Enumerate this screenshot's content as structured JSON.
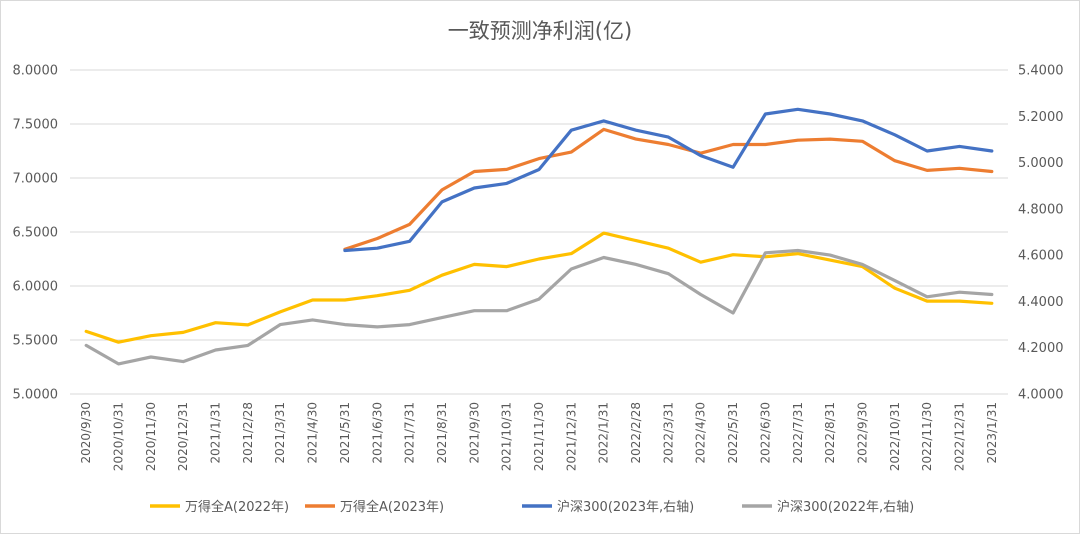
{
  "chart_data": {
    "type": "line",
    "title": "一致预测净利润(亿)",
    "categories": [
      "2020/9/30",
      "2020/10/31",
      "2020/11/30",
      "2020/12/31",
      "2021/1/31",
      "2021/2/28",
      "2021/3/31",
      "2021/4/30",
      "2021/5/31",
      "2021/6/30",
      "2021/7/31",
      "2021/8/31",
      "2021/9/30",
      "2021/10/31",
      "2021/11/30",
      "2021/12/31",
      "2022/1/31",
      "2022/2/28",
      "2022/3/31",
      "2022/4/30",
      "2022/5/31",
      "2022/6/30",
      "2022/7/31",
      "2022/8/31",
      "2022/9/30",
      "2022/10/31",
      "2022/11/30",
      "2022/12/31",
      "2023/1/31"
    ],
    "y_left": {
      "min": 5.0,
      "max": 8.0,
      "step": 0.5,
      "tick_labels": [
        "5.0000",
        "5.5000",
        "6.0000",
        "6.5000",
        "7.0000",
        "7.5000",
        "8.0000"
      ]
    },
    "y_right": {
      "min": 4.0,
      "max": 5.4,
      "step": 0.2,
      "tick_labels": [
        "4.0000",
        "4.2000",
        "4.4000",
        "4.6000",
        "4.8000",
        "5.0000",
        "5.2000",
        "5.4000"
      ]
    },
    "grid": true,
    "legend_position": "bottom",
    "series": [
      {
        "name": "万得全A(2022年)",
        "axis": "left",
        "color": "#FFC000",
        "values": [
          5.58,
          5.48,
          5.54,
          5.57,
          5.66,
          5.64,
          5.76,
          5.87,
          5.87,
          5.91,
          5.96,
          6.1,
          6.2,
          6.18,
          6.25,
          6.3,
          6.49,
          6.42,
          6.35,
          6.22,
          6.29,
          6.27,
          6.3,
          6.24,
          6.18,
          5.98,
          5.86,
          5.86,
          5.84
        ]
      },
      {
        "name": "万得全A(2023年)",
        "axis": "left",
        "color": "#ED7D31",
        "values": [
          null,
          null,
          null,
          null,
          null,
          null,
          null,
          null,
          6.34,
          6.44,
          6.57,
          6.89,
          7.06,
          7.08,
          7.18,
          7.24,
          7.45,
          7.36,
          7.31,
          7.23,
          7.31,
          7.31,
          7.35,
          7.36,
          7.34,
          7.16,
          7.07,
          7.09,
          7.06
        ]
      },
      {
        "name": "沪深300(2023年,右轴)",
        "axis": "right",
        "color": "#4472C4",
        "values": [
          null,
          null,
          null,
          null,
          null,
          null,
          null,
          null,
          4.62,
          4.63,
          4.66,
          4.83,
          4.89,
          4.91,
          4.97,
          5.14,
          5.18,
          5.14,
          5.11,
          5.03,
          4.98,
          5.21,
          5.23,
          5.21,
          5.18,
          5.12,
          5.05,
          5.07,
          5.05
        ]
      },
      {
        "name": "沪深300(2022年,右轴)",
        "axis": "right",
        "color": "#A5A5A5",
        "values": [
          4.21,
          4.13,
          4.16,
          4.14,
          4.19,
          4.21,
          4.3,
          4.32,
          4.3,
          4.29,
          4.3,
          4.33,
          4.36,
          4.36,
          4.41,
          4.54,
          4.59,
          4.56,
          4.52,
          4.43,
          4.35,
          4.61,
          4.62,
          4.6,
          4.56,
          4.49,
          4.42,
          4.44,
          4.43
        ]
      }
    ]
  }
}
